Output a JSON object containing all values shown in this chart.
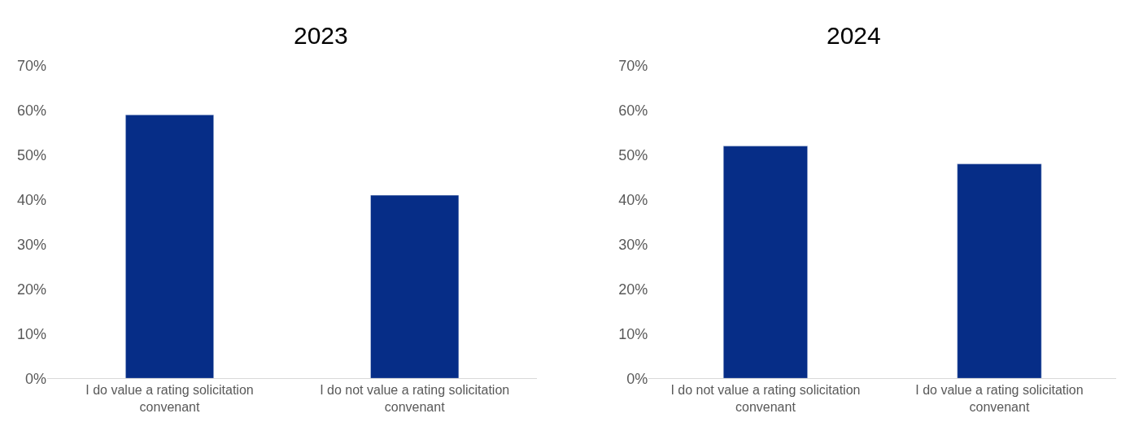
{
  "chart_data": [
    {
      "type": "bar",
      "title": "2023",
      "categories": [
        "I do value a rating solicitation convenant",
        "I do not value a rating solicitation convenant"
      ],
      "values": [
        0.59,
        0.41
      ],
      "color": "#062d87",
      "ylim": [
        0,
        0.7
      ],
      "yticks": [
        {
          "value": 0,
          "label": "0%"
        },
        {
          "value": 0.1,
          "label": "10%"
        },
        {
          "value": 0.2,
          "label": "20%"
        },
        {
          "value": 0.3,
          "label": "30%"
        },
        {
          "value": 0.4,
          "label": "40%"
        },
        {
          "value": 0.5,
          "label": "50%"
        },
        {
          "value": 0.6,
          "label": "60%"
        },
        {
          "value": 0.7,
          "label": "70%"
        }
      ],
      "grid": false
    },
    {
      "type": "bar",
      "title": "2024",
      "categories": [
        "I do not value a rating solicitation convenant",
        "I do value a rating solicitation convenant"
      ],
      "values": [
        0.52,
        0.48
      ],
      "color": "#062d87",
      "ylim": [
        0,
        0.7
      ],
      "yticks": [
        {
          "value": 0,
          "label": "0%"
        },
        {
          "value": 0.1,
          "label": "10%"
        },
        {
          "value": 0.2,
          "label": "20%"
        },
        {
          "value": 0.3,
          "label": "30%"
        },
        {
          "value": 0.4,
          "label": "40%"
        },
        {
          "value": 0.5,
          "label": "50%"
        },
        {
          "value": 0.6,
          "label": "60%"
        },
        {
          "value": 0.7,
          "label": "70%"
        }
      ],
      "grid": false
    }
  ]
}
